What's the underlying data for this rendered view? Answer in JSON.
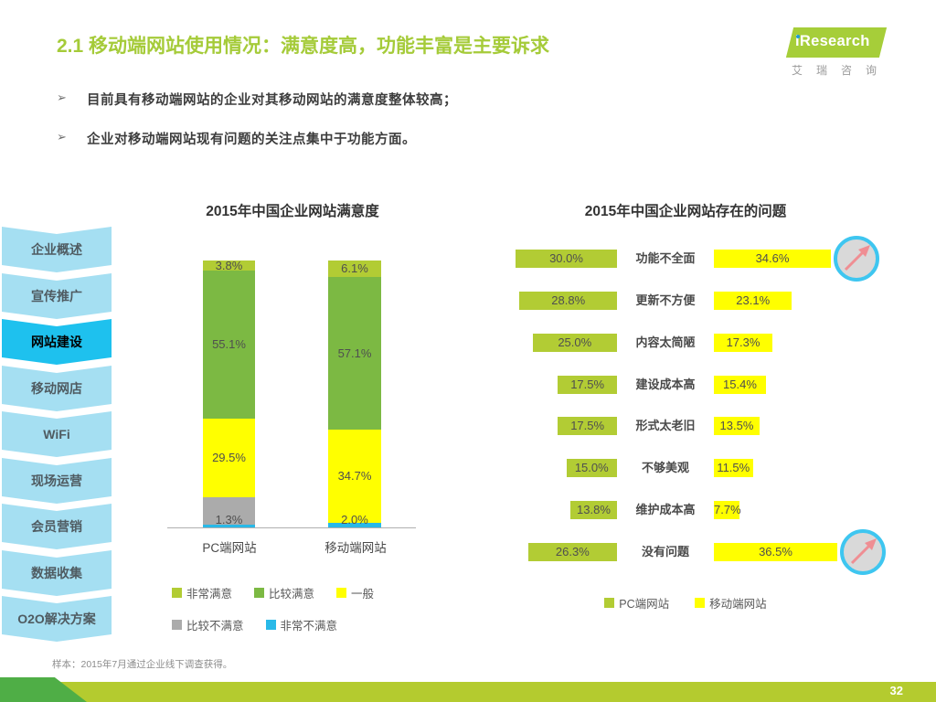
{
  "header": {
    "title": "2.1 移动端网站使用情况：满意度高，功能丰富是主要诉求",
    "bullet_glyph": "➢",
    "bullets": [
      "目前具有移动端网站的企业对其移动网站的满意度整体较高；",
      "企业对移动端网站现有问题的关注点集中于功能方面。"
    ],
    "logo": {
      "brand": "iResearch",
      "brand_cn": "艾瑞咨询"
    }
  },
  "sidebar": {
    "items": [
      {
        "label": "企业概述",
        "active": false
      },
      {
        "label": "宣传推广",
        "active": false
      },
      {
        "label": "网站建设",
        "active": true
      },
      {
        "label": "移动网店",
        "active": false
      },
      {
        "label": "WiFi",
        "active": false
      },
      {
        "label": "现场运营",
        "active": false
      },
      {
        "label": "会员营销",
        "active": false
      },
      {
        "label": "数据收集",
        "active": false
      },
      {
        "label": "O2O解决方案",
        "active": false
      }
    ]
  },
  "chart_data": [
    {
      "type": "bar",
      "subtype": "stacked-vertical",
      "title": "2015年中国企业网站满意度",
      "categories": [
        "PC端网站",
        "移动端网站"
      ],
      "legend": [
        "非常满意",
        "比较满意",
        "一般",
        "比较不满意",
        "非常不满意"
      ],
      "colors": [
        "#b2cc34",
        "#7cb943",
        "#ffff00",
        "#ababab",
        "#29b9e8"
      ],
      "series": [
        {
          "name": "非常满意",
          "values": [
            3.8,
            6.1
          ],
          "show_labels": true
        },
        {
          "name": "比较满意",
          "values": [
            55.1,
            57.1
          ],
          "show_labels": true
        },
        {
          "name": "一般",
          "values": [
            29.5,
            34.7
          ],
          "show_labels": true
        },
        {
          "name": "比较不满意",
          "values": [
            10.3,
            0.1
          ],
          "show_labels": false
        },
        {
          "name": "非常不满意",
          "values": [
            1.3,
            2.0
          ],
          "show_labels": true
        }
      ],
      "ylim": [
        0,
        100
      ],
      "unit": "%",
      "grid": false
    },
    {
      "type": "bar",
      "subtype": "tornado-horizontal",
      "title": "2015年中国企业网站存在的问题",
      "categories": [
        "功能不全面",
        "更新不方便",
        "内容太简陋",
        "建设成本高",
        "形式太老旧",
        "不够美观",
        "维护成本高",
        "没有问题"
      ],
      "series": [
        {
          "name": "PC端网站",
          "color": "#b2cc34",
          "values": [
            30.0,
            28.8,
            25.0,
            17.5,
            17.5,
            15.0,
            13.8,
            26.3
          ]
        },
        {
          "name": "移动端网站",
          "color": "#ffff00",
          "values": [
            34.6,
            23.1,
            17.3,
            15.4,
            13.5,
            11.5,
            7.7,
            36.5
          ]
        }
      ],
      "highlight_rows": [
        0,
        7
      ],
      "legend": [
        "PC端网站",
        "移动端网站"
      ],
      "unit": "%"
    }
  ],
  "footer": {
    "note": "样本：2015年7月通过企业线下调查获得。",
    "page": "32"
  }
}
